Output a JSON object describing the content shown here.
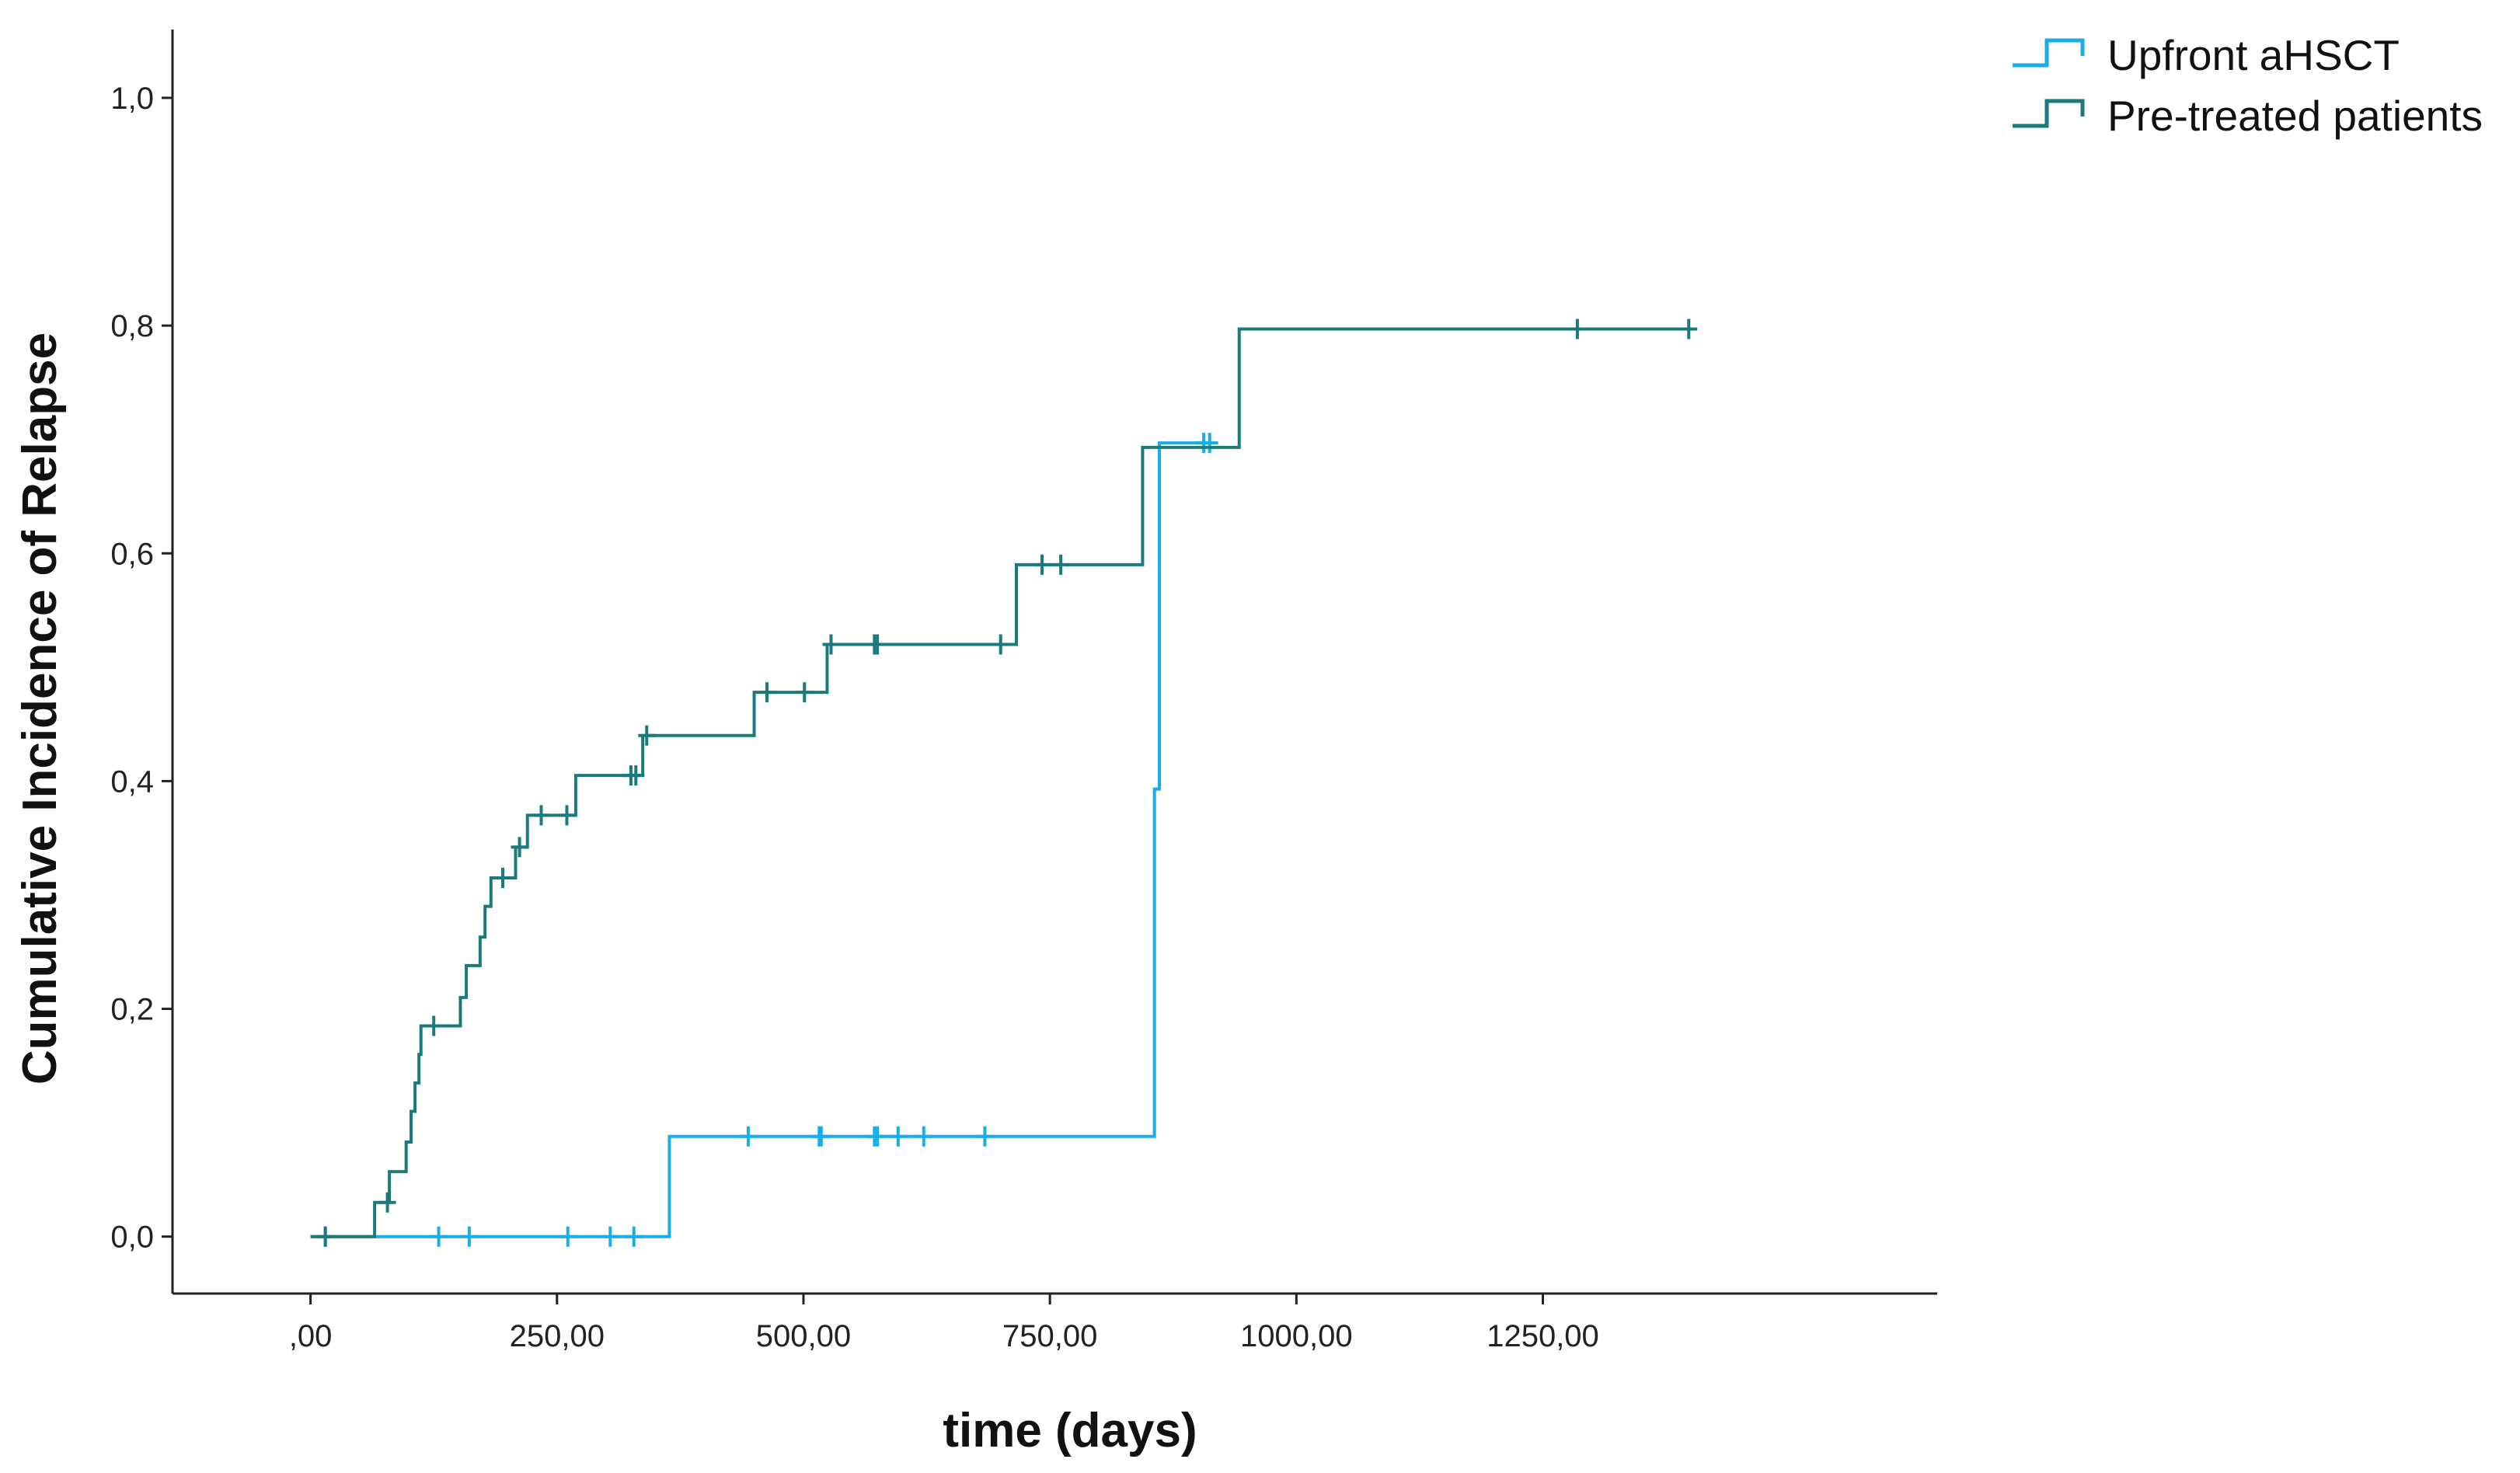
{
  "chart_data": {
    "type": "line",
    "step": true,
    "xlabel": "time (days)",
    "ylabel": "Cumulative Incidence of Relapse",
    "xlim": [
      -140,
      1650
    ],
    "ylim": [
      -0.05,
      1.06
    ],
    "x_ticks": [
      0,
      250,
      500,
      750,
      1000,
      1250
    ],
    "x_tick_labels": [
      ",00",
      "250,00",
      "500,00",
      "750,00",
      "1000,00",
      "1250,00"
    ],
    "y_ticks": [
      0,
      0.2,
      0.4,
      0.6,
      0.8,
      1.0
    ],
    "y_tick_labels": [
      "0,0",
      "0,2",
      "0,4",
      "0,6",
      "0,8",
      "1,0"
    ],
    "grid": false,
    "legend_position": "top-right outside plot",
    "series": [
      {
        "name": "Upfront aHSCT",
        "color": "#1aaee8",
        "steps": [
          [
            0,
            0
          ],
          [
            364,
            0.088
          ],
          [
            856,
            0.393
          ],
          [
            861,
            0.697
          ],
          [
            914,
            0.697
          ]
        ],
        "censored": [
          [
            15,
            0
          ],
          [
            130,
            0
          ],
          [
            161,
            0
          ],
          [
            261,
            0
          ],
          [
            304,
            0
          ],
          [
            328,
            0
          ],
          [
            444,
            0.088
          ],
          [
            516,
            0.088
          ],
          [
            518,
            0.088
          ],
          [
            572,
            0.088
          ],
          [
            575,
            0.088
          ],
          [
            596,
            0.088
          ],
          [
            622,
            0.088
          ],
          [
            684,
            0.088
          ],
          [
            906,
            0.697
          ],
          [
            912,
            0.697
          ]
        ]
      },
      {
        "name": "Pre-treated patients",
        "color": "#1a7a7c",
        "steps": [
          [
            0,
            0
          ],
          [
            65,
            0.03
          ],
          [
            80,
            0.057
          ],
          [
            97,
            0.083
          ],
          [
            102,
            0.11
          ],
          [
            106,
            0.135
          ],
          [
            110,
            0.16
          ],
          [
            112,
            0.185
          ],
          [
            152,
            0.21
          ],
          [
            158,
            0.238
          ],
          [
            172,
            0.263
          ],
          [
            177,
            0.29
          ],
          [
            183,
            0.315
          ],
          [
            208,
            0.342
          ],
          [
            220,
            0.37
          ],
          [
            269,
            0.405
          ],
          [
            337,
            0.44
          ],
          [
            450,
            0.478
          ],
          [
            524,
            0.52
          ],
          [
            716,
            0.59
          ],
          [
            844,
            0.693
          ],
          [
            942,
            0.797
          ],
          [
            1398,
            0.797
          ]
        ],
        "censored": [
          [
            15,
            0
          ],
          [
            78,
            0.03
          ],
          [
            125,
            0.185
          ],
          [
            195,
            0.315
          ],
          [
            212,
            0.342
          ],
          [
            234,
            0.37
          ],
          [
            260,
            0.37
          ],
          [
            325,
            0.405
          ],
          [
            330,
            0.405
          ],
          [
            341,
            0.44
          ],
          [
            463,
            0.478
          ],
          [
            501,
            0.478
          ],
          [
            528,
            0.52
          ],
          [
            572,
            0.52
          ],
          [
            575,
            0.52
          ],
          [
            700,
            0.52
          ],
          [
            742,
            0.59
          ],
          [
            761,
            0.59
          ],
          [
            1285,
            0.797
          ],
          [
            1398,
            0.797
          ]
        ]
      }
    ]
  }
}
